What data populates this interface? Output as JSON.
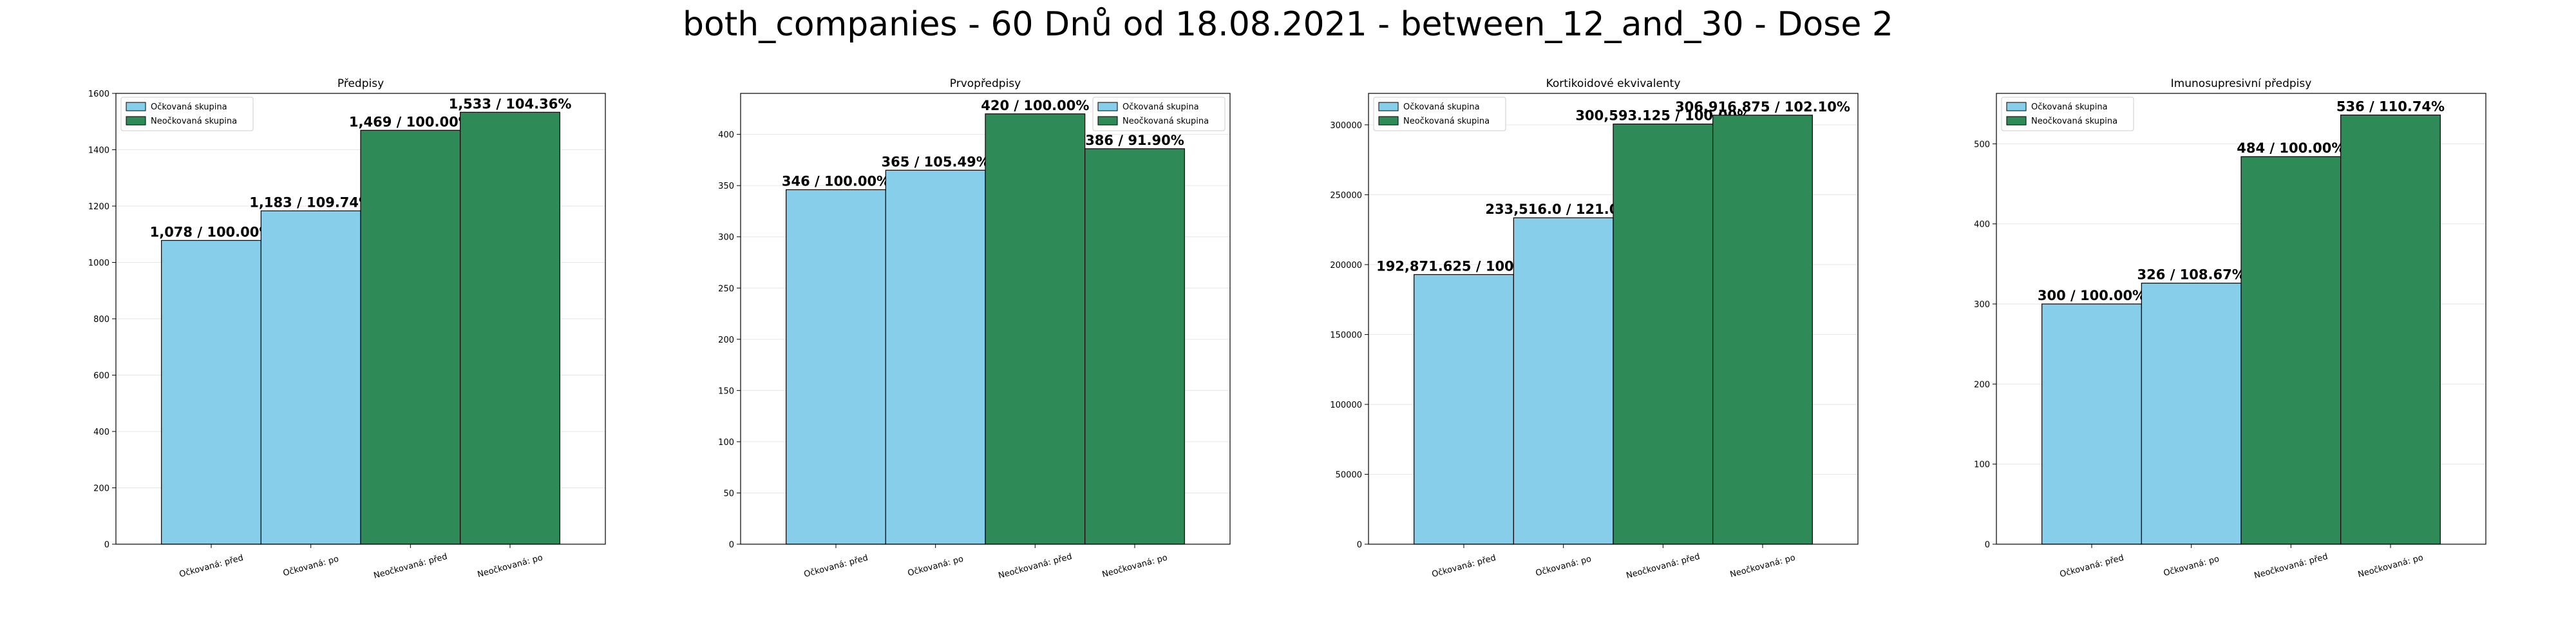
{
  "title": "both_companies - 60 Dnů od 18.08.2021 - between_12_and_30 - Dose 2",
  "colors": {
    "vaccinated": "#87CEEB",
    "unvaccinated": "#2E8B57",
    "grid": "#e6e6e6",
    "edge": "#000000"
  },
  "legend": [
    "Očkovaná skupina",
    "Neočkovaná skupina"
  ],
  "categories": [
    "Očkovaná: před",
    "Očkovaná: po",
    "Neočkovaná: před",
    "Neočkovaná: po"
  ],
  "chart_data": [
    {
      "type": "bar",
      "title": "Předpisy",
      "categories": [
        "Očkovaná: před",
        "Očkovaná: po",
        "Neočkovaná: před",
        "Neočkovaná: po"
      ],
      "values": [
        1078,
        1183,
        1469,
        1533
      ],
      "labels": [
        "1,078 / 100.00%",
        "1,183 / 109.74%",
        "1,469 / 100.00%",
        "1,533 / 104.36%"
      ],
      "ylim": [
        0,
        1600
      ],
      "yticks": [
        0,
        200,
        400,
        600,
        800,
        1000,
        1200,
        1400,
        1600
      ],
      "ytick_labels": [
        "0",
        "200",
        "400",
        "600",
        "800",
        "1000",
        "1200",
        "1400",
        "1600"
      ],
      "legend_position": "top-left",
      "grid": true
    },
    {
      "type": "bar",
      "title": "Prvopředpisy",
      "categories": [
        "Očkovaná: před",
        "Očkovaná: po",
        "Neočkovaná: před",
        "Neočkovaná: po"
      ],
      "values": [
        346,
        365,
        420,
        386
      ],
      "labels": [
        "346 / 100.00%",
        "365 / 105.49%",
        "420 / 100.00%",
        "386 / 91.90%"
      ],
      "ylim": [
        0,
        440
      ],
      "yticks": [
        0,
        50,
        100,
        150,
        200,
        250,
        300,
        350,
        400
      ],
      "ytick_labels": [
        "0",
        "50",
        "100",
        "150",
        "200",
        "250",
        "300",
        "350",
        "400"
      ],
      "legend_position": "top-right",
      "grid": true
    },
    {
      "type": "bar",
      "title": "Kortikoidové ekvivalenty",
      "categories": [
        "Očkovaná: před",
        "Očkovaná: po",
        "Neočkovaná: před",
        "Neočkovaná: po"
      ],
      "values": [
        192871.625,
        233516.0,
        300593.125,
        306916.875
      ],
      "labels": [
        "192,871.625 / 100.00%",
        "233,516.0 / 121.07%",
        "300,593.125 / 100.00%",
        "306,916.875 / 102.10%"
      ],
      "ylim": [
        0,
        322500
      ],
      "yticks": [
        0,
        50000,
        100000,
        150000,
        200000,
        250000,
        300000
      ],
      "ytick_labels": [
        "0",
        "50000",
        "100000",
        "150000",
        "200000",
        "250000",
        "300000"
      ],
      "legend_position": "top-left",
      "grid": true
    },
    {
      "type": "bar",
      "title": "Imunosupresivní předpisy",
      "categories": [
        "Očkovaná: před",
        "Očkovaná: po",
        "Neočkovaná: před",
        "Neočkovaná: po"
      ],
      "values": [
        300,
        326,
        484,
        536
      ],
      "labels": [
        "300 / 100.00%",
        "326 / 108.67%",
        "484 / 100.00%",
        "536 / 110.74%"
      ],
      "ylim": [
        0,
        563
      ],
      "yticks": [
        0,
        100,
        200,
        300,
        400,
        500
      ],
      "ytick_labels": [
        "0",
        "100",
        "200",
        "300",
        "400",
        "500"
      ],
      "legend_position": "top-left",
      "grid": true
    }
  ]
}
